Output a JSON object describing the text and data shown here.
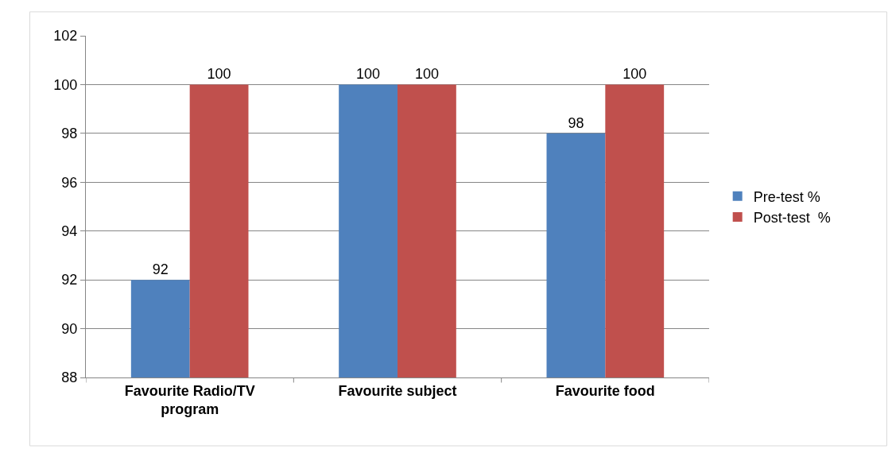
{
  "chart_data": {
    "type": "bar",
    "categories": [
      "Favourite Radio/TV program",
      "Favourite subject",
      "Favourite food"
    ],
    "series": [
      {
        "name": "Pre-test %",
        "color": "#4f81bd",
        "values": [
          92,
          100,
          98
        ]
      },
      {
        "name": "Post-test  %",
        "color": "#c0504d",
        "values": [
          100,
          100,
          100
        ]
      }
    ],
    "ylim": [
      88,
      102
    ],
    "yticks": [
      88,
      90,
      92,
      94,
      96,
      98,
      100,
      102
    ],
    "grid": "y",
    "legend": "right",
    "data_labels": true
  }
}
